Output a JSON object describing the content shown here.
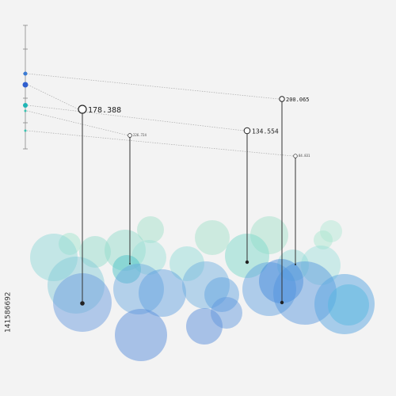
{
  "pins": [
    {
      "label": "178.388"
    },
    {
      "label": "226.724"
    },
    {
      "label": "134.554"
    },
    {
      "label": "200.065"
    },
    {
      "label": "84.831"
    }
  ],
  "watermark_id": "141586692"
}
